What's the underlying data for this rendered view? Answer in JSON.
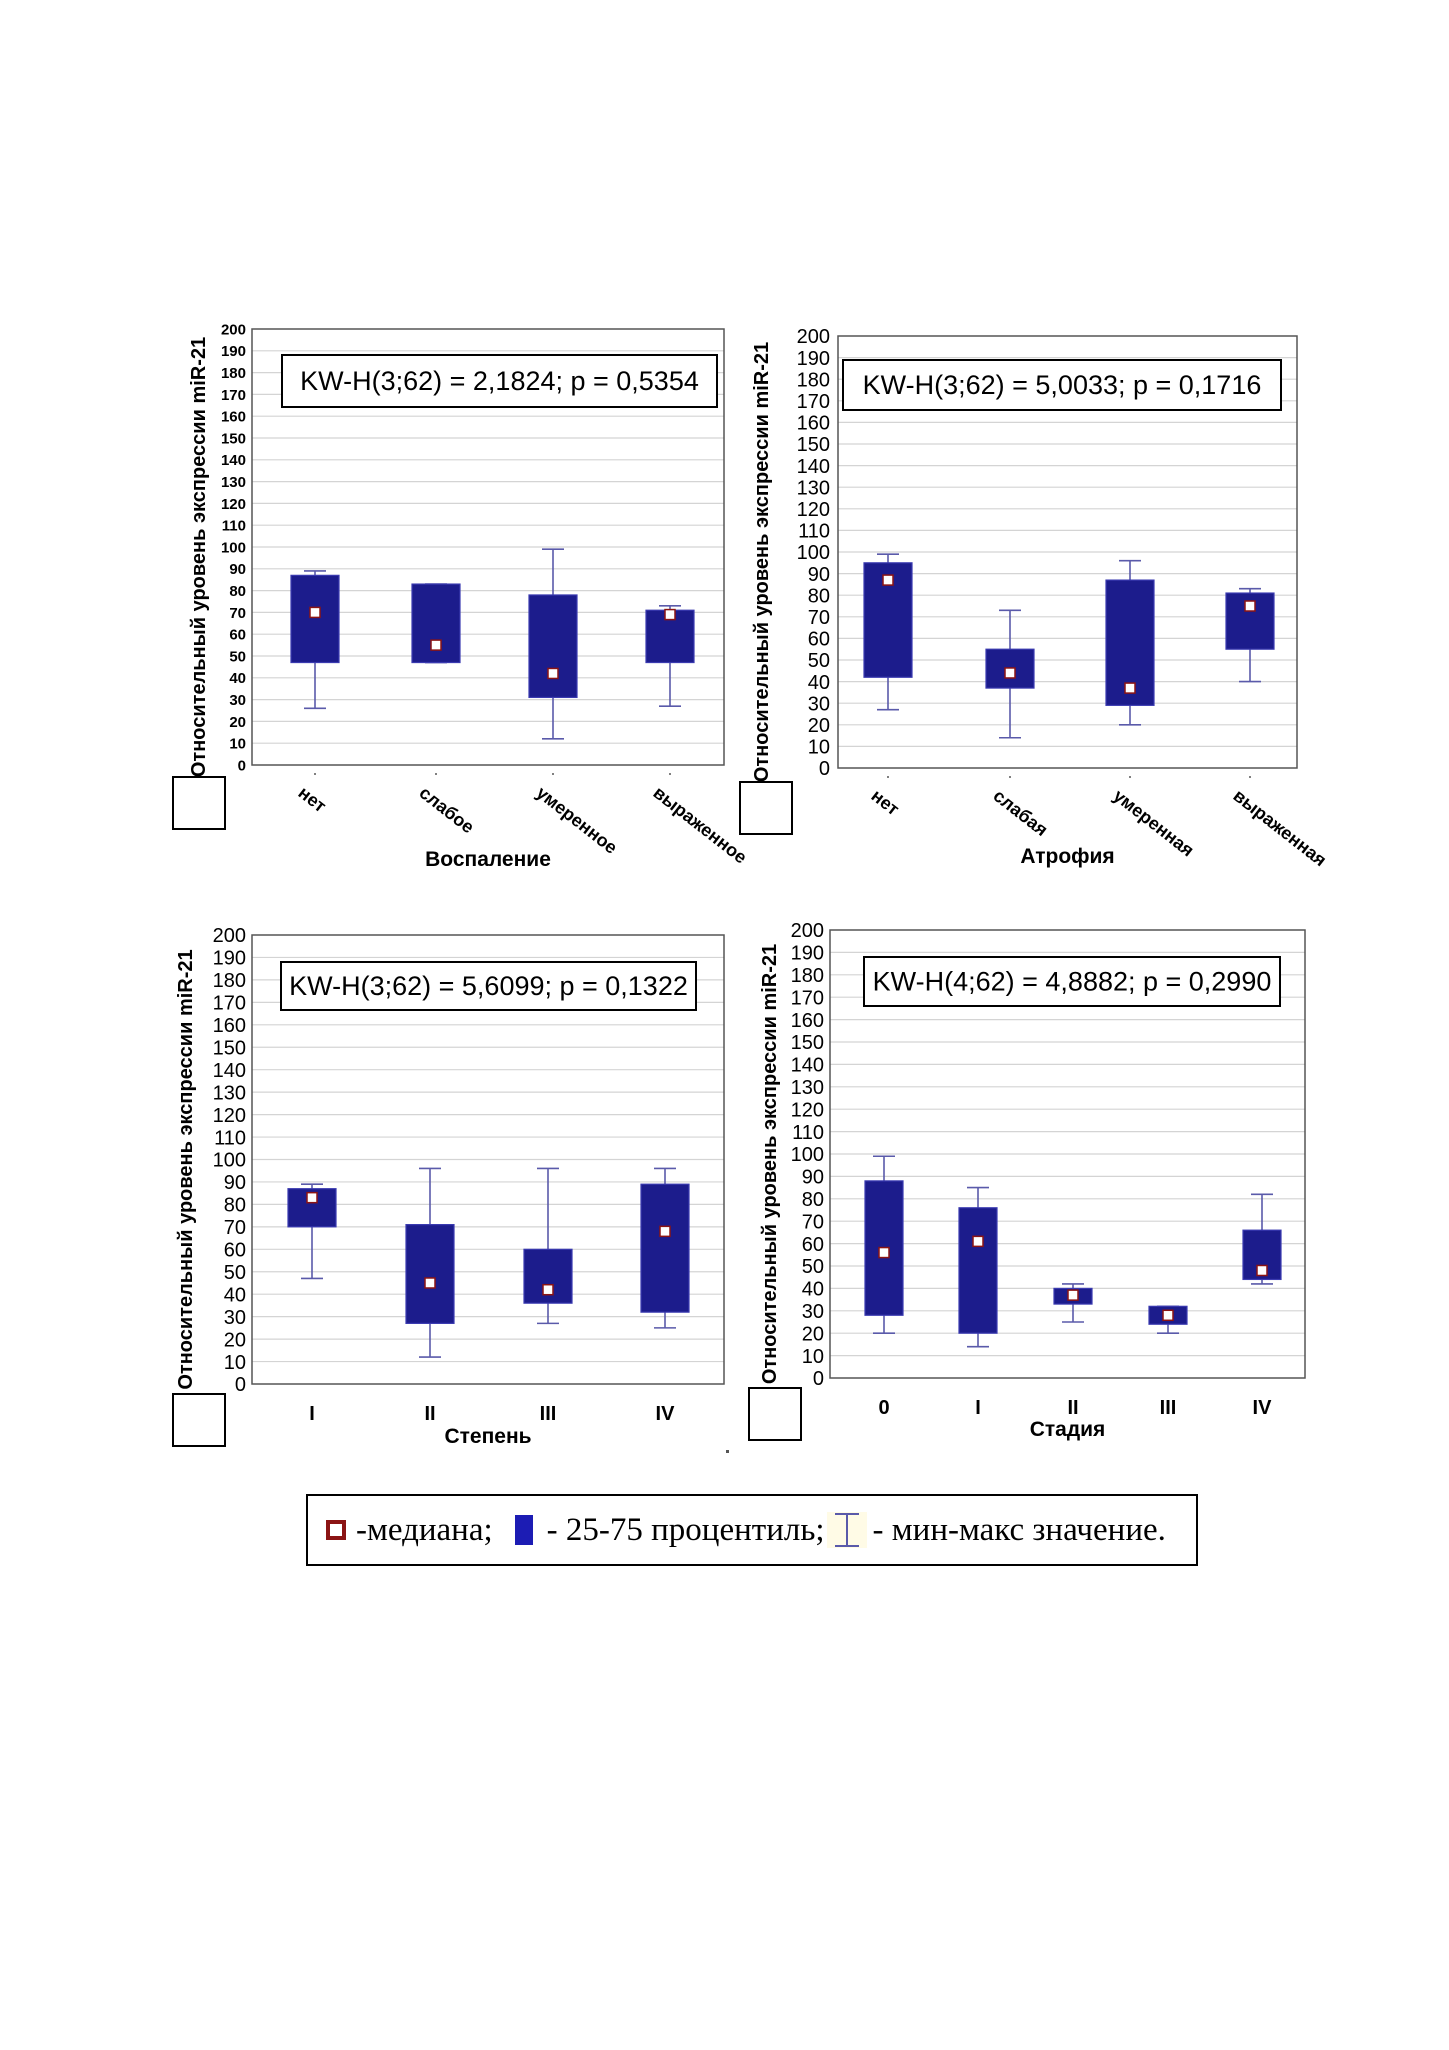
{
  "chart_data": [
    {
      "type": "box",
      "stat_text": "KW-H(3;62) = 2,1824; p = 0,5354",
      "ylabel": "Относительный уровень экспрессии miR-21",
      "xlabel": "Воспаление",
      "ylim": [
        0,
        200
      ],
      "yticks": [
        "0",
        "10",
        "20",
        "30",
        "40",
        "50",
        "60",
        "70",
        "80",
        "90",
        "100",
        "110",
        "120",
        "130",
        "140",
        "150",
        "160",
        "170",
        "180",
        "190",
        "200"
      ],
      "categories": [
        "нет",
        "слабое",
        "умеренное",
        "выраженное"
      ],
      "rotated_labels": true,
      "boxes": [
        {
          "min": 26,
          "q1": 47,
          "median": 70,
          "q3": 87,
          "max": 89
        },
        {
          "min": 47,
          "q1": 47,
          "median": 55,
          "q3": 83,
          "max": 83
        },
        {
          "min": 12,
          "q1": 31,
          "median": 42,
          "q3": 78,
          "max": 99
        },
        {
          "min": 27,
          "q1": 47,
          "median": 69,
          "q3": 71,
          "max": 73
        }
      ]
    },
    {
      "type": "box",
      "stat_text": "KW-H(3;62) = 5,0033; p = 0,1716",
      "ylabel": "Относительный уровень экспрессии miR-21",
      "xlabel": "Атрофия",
      "ylim": [
        0,
        200
      ],
      "yticks": [
        "0",
        "10",
        "20",
        "30",
        "40",
        "50",
        "60",
        "70",
        "80",
        "90",
        "100",
        "110",
        "120",
        "130",
        "140",
        "150",
        "160",
        "170",
        "180",
        "190",
        "200"
      ],
      "categories": [
        "нет",
        "слабая",
        "умеренная",
        "выраженная"
      ],
      "rotated_labels": true,
      "boxes": [
        {
          "min": 27,
          "q1": 42,
          "median": 87,
          "q3": 95,
          "max": 99
        },
        {
          "min": 14,
          "q1": 37,
          "median": 44,
          "q3": 55,
          "max": 73
        },
        {
          "min": 20,
          "q1": 29,
          "median": 37,
          "q3": 87,
          "max": 96
        },
        {
          "min": 40,
          "q1": 55,
          "median": 75,
          "q3": 81,
          "max": 83
        }
      ]
    },
    {
      "type": "box",
      "stat_text": "KW-H(3;62) = 5,6099; p = 0,1322",
      "ylabel": "Относительный уровень экспрессии miR-21",
      "xlabel": "Степень",
      "ylim": [
        0,
        200
      ],
      "yticks": [
        "0",
        "10",
        "20",
        "30",
        "40",
        "50",
        "60",
        "70",
        "80",
        "90",
        "100",
        "110",
        "120",
        "130",
        "140",
        "150",
        "160",
        "170",
        "180",
        "190",
        "200"
      ],
      "categories": [
        "I",
        "II",
        "III",
        "IV"
      ],
      "rotated_labels": false,
      "boxes": [
        {
          "min": 47,
          "q1": 70,
          "median": 83,
          "q3": 87,
          "max": 89
        },
        {
          "min": 12,
          "q1": 27,
          "median": 45,
          "q3": 71,
          "max": 96
        },
        {
          "min": 27,
          "q1": 36,
          "median": 42,
          "q3": 60,
          "max": 96
        },
        {
          "min": 25,
          "q1": 32,
          "median": 68,
          "q3": 89,
          "max": 96
        }
      ]
    },
    {
      "type": "box",
      "stat_text": "KW-H(4;62) = 4,8882; p = 0,2990",
      "ylabel": "Относительный уровень экспрессии miR-21",
      "xlabel": "Стадия",
      "ylim": [
        0,
        200
      ],
      "yticks": [
        "0",
        "10",
        "20",
        "30",
        "40",
        "50",
        "60",
        "70",
        "80",
        "90",
        "100",
        "110",
        "120",
        "130",
        "140",
        "150",
        "160",
        "170",
        "180",
        "190",
        "200"
      ],
      "categories": [
        "0",
        "I",
        "II",
        "III",
        "IV"
      ],
      "rotated_labels": false,
      "boxes": [
        {
          "min": 20,
          "q1": 28,
          "median": 56,
          "q3": 88,
          "max": 99
        },
        {
          "min": 14,
          "q1": 20,
          "median": 61,
          "q3": 76,
          "max": 85
        },
        {
          "min": 25,
          "q1": 33,
          "median": 37,
          "q3": 40,
          "max": 42
        },
        {
          "min": 20,
          "q1": 24,
          "median": 28,
          "q3": 32,
          "max": 32
        },
        {
          "min": 42,
          "q1": 44,
          "median": 48,
          "q3": 66,
          "max": 82
        }
      ]
    }
  ],
  "colors": {
    "box": "#1c1c8c",
    "whisker": "#5a5aaa",
    "median_fill": "#ffffff",
    "median_border": "#8b1414",
    "grid": "#d4d4d4"
  },
  "legend": {
    "median_label": "-медиана;",
    "box_label": "- 25-75 процентиль;",
    "whisker_label": "- мин-макс значение."
  }
}
